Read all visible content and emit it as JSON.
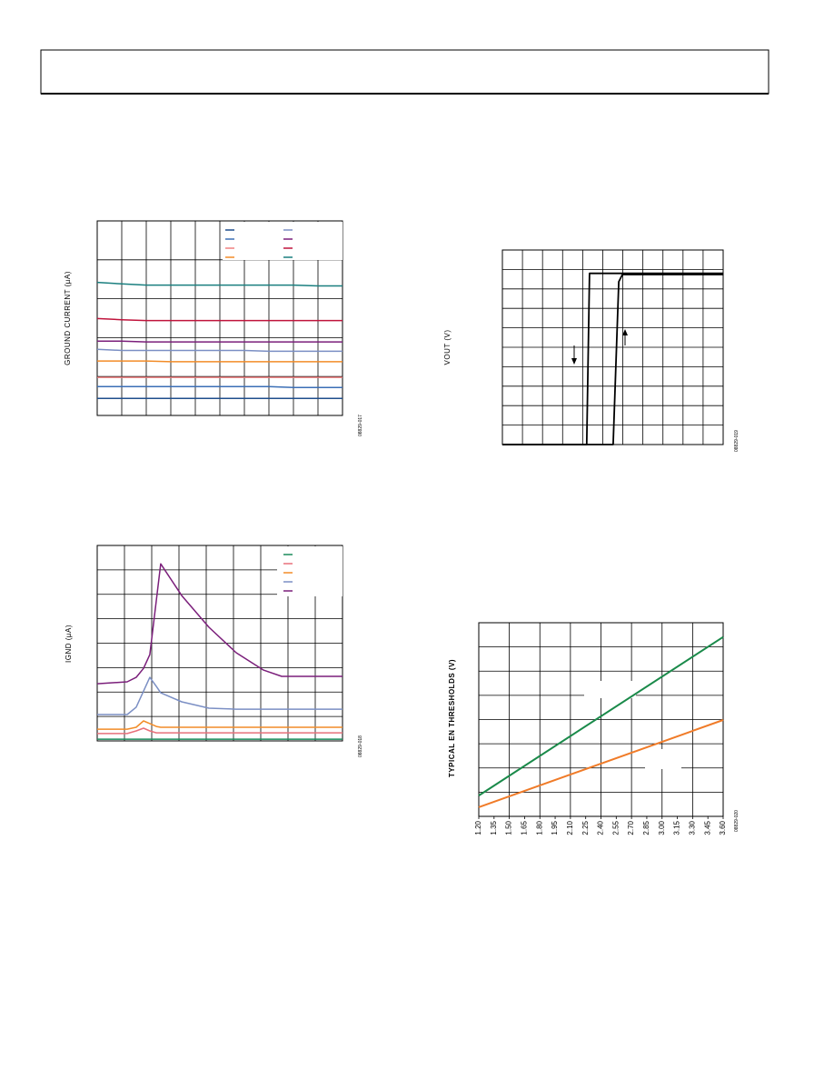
{
  "chart_data": [
    {
      "type": "line",
      "y_label": "GROUND CURRENT (µA)",
      "figure_id": "08829-017",
      "xlim": [
        0,
        10
      ],
      "ylim": [
        0,
        5
      ],
      "x": [
        0,
        1,
        2,
        3,
        4,
        5,
        6,
        7,
        8,
        9,
        10
      ],
      "series": [
        {
          "color": "#1f4e8c",
          "values": [
            0.44,
            0.44,
            0.44,
            0.44,
            0.44,
            0.44,
            0.44,
            0.44,
            0.44,
            0.44,
            0.44
          ]
        },
        {
          "color": "#3b6fb6",
          "values": [
            0.74,
            0.74,
            0.74,
            0.74,
            0.74,
            0.74,
            0.74,
            0.74,
            0.72,
            0.72,
            0.72
          ]
        },
        {
          "color": "#f08080",
          "values": [
            0.98,
            0.98,
            0.98,
            0.98,
            0.98,
            0.98,
            0.98,
            0.98,
            0.98,
            0.98,
            0.98
          ]
        },
        {
          "color": "#f28c28",
          "values": [
            1.4,
            1.4,
            1.4,
            1.38,
            1.38,
            1.38,
            1.38,
            1.38,
            1.38,
            1.38,
            1.38
          ]
        },
        {
          "color": "#7b8fc4",
          "values": [
            1.7,
            1.67,
            1.67,
            1.67,
            1.67,
            1.67,
            1.67,
            1.65,
            1.65,
            1.65,
            1.65
          ]
        },
        {
          "color": "#7b1f7b",
          "values": [
            1.91,
            1.91,
            1.89,
            1.89,
            1.89,
            1.89,
            1.89,
            1.89,
            1.89,
            1.89,
            1.89
          ]
        },
        {
          "color": "#c0143c",
          "values": [
            2.49,
            2.46,
            2.44,
            2.44,
            2.44,
            2.44,
            2.44,
            2.44,
            2.44,
            2.44,
            2.44
          ]
        },
        {
          "color": "#1a7f7f",
          "values": [
            3.42,
            3.38,
            3.35,
            3.35,
            3.35,
            3.35,
            3.35,
            3.35,
            3.35,
            3.33,
            3.33
          ]
        }
      ]
    },
    {
      "type": "line",
      "y_label": "IGND (µA)",
      "figure_id": "08829-018",
      "xlim": [
        0,
        9
      ],
      "ylim": [
        0,
        8
      ],
      "x": [
        0,
        1.1,
        1.43,
        1.7,
        1.93,
        2.17,
        2.33,
        3.1,
        4.1,
        5.1,
        6.1,
        6.77,
        9
      ],
      "series": [
        {
          "color": "#1a8a5a",
          "values": [
            0.07,
            0.07,
            0.07,
            0.07,
            0.07,
            0.07,
            0.07,
            0.07,
            0.07,
            0.07,
            0.07,
            0.07,
            0.07
          ]
        },
        {
          "color": "#e8707a",
          "values": [
            0.3,
            0.3,
            0.41,
            0.52,
            0.41,
            0.33,
            0.33,
            0.33,
            0.33,
            0.33,
            0.33,
            0.33,
            0.33
          ]
        },
        {
          "color": "#f28c28",
          "values": [
            0.48,
            0.48,
            0.56,
            0.82,
            0.71,
            0.59,
            0.56,
            0.56,
            0.56,
            0.56,
            0.56,
            0.56,
            0.56
          ]
        },
        {
          "color": "#7b8fc4",
          "values": [
            1.08,
            1.08,
            1.38,
            2.04,
            2.6,
            2.23,
            1.97,
            1.6,
            1.34,
            1.3,
            1.3,
            1.3,
            1.3
          ]
        },
        {
          "color": "#7b1f7b",
          "values": [
            2.34,
            2.42,
            2.6,
            2.97,
            3.53,
            5.76,
            7.25,
            5.95,
            4.65,
            3.61,
            2.9,
            2.64,
            2.64
          ]
        }
      ]
    },
    {
      "type": "line",
      "y_label": "VOUT (V)",
      "figure_id": "08829-019",
      "xlim": [
        0,
        11
      ],
      "ylim": [
        0,
        10
      ],
      "series": [
        {
          "color": "#000000",
          "x": [
            0,
            4.2,
            4.34,
            11
          ],
          "values": [
            0,
            0,
            8.8,
            8.8
          ]
        },
        {
          "color": "#000000",
          "x": [
            0,
            5.52,
            5.8,
            5.98,
            11
          ],
          "values": [
            0,
            0,
            8.37,
            8.74,
            8.74
          ]
        }
      ]
    },
    {
      "type": "line",
      "y_label": "TYPICAL EN THRESHOLDS (V)",
      "figure_id": "08829-020",
      "xlim": [
        1.2,
        3.6
      ],
      "ylim": [
        0,
        8
      ],
      "xticks": [
        {
          "value": 1.2,
          "label": "1.20"
        },
        1.35,
        {
          "value": 1.5,
          "label": "1.50"
        },
        1.65,
        {
          "value": 1.8,
          "label": "1.80"
        },
        1.95,
        {
          "value": 2.1,
          "label": "2.10"
        },
        2.25,
        {
          "value": 2.4,
          "label": "2.40"
        },
        2.55,
        {
          "value": 2.7,
          "label": "2.70"
        },
        2.85,
        {
          "value": 3.0,
          "label": "3.00"
        },
        3.15,
        {
          "value": 3.3,
          "label": "3.30"
        },
        3.45,
        {
          "value": 3.6,
          "label": "3.60"
        }
      ],
      "x": [
        1.2,
        3.6
      ],
      "series": [
        {
          "color": "#1a8a4a",
          "values": [
            0.86,
            7.41
          ]
        },
        {
          "color": "#f07b28",
          "values": [
            0.38,
            3.98
          ]
        }
      ]
    }
  ]
}
